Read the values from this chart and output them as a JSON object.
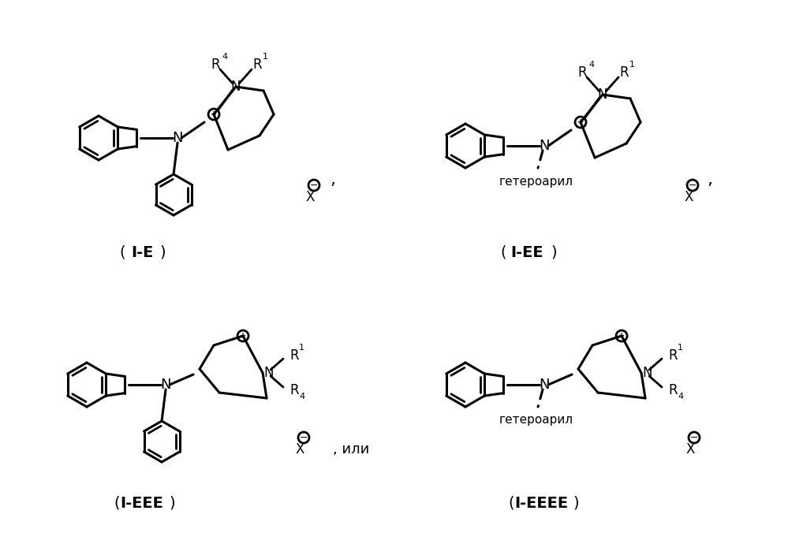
{
  "bg_color": "#ffffff",
  "lw": 2.0,
  "lw2": 2.2,
  "color": "#000000",
  "heteroaryl": "гетероарил",
  "ili": ", или",
  "label_IE": "I-E",
  "label_IEE": "I-EE",
  "label_IEEE": "I-EEE",
  "label_IEEEE": "I-EEEE"
}
